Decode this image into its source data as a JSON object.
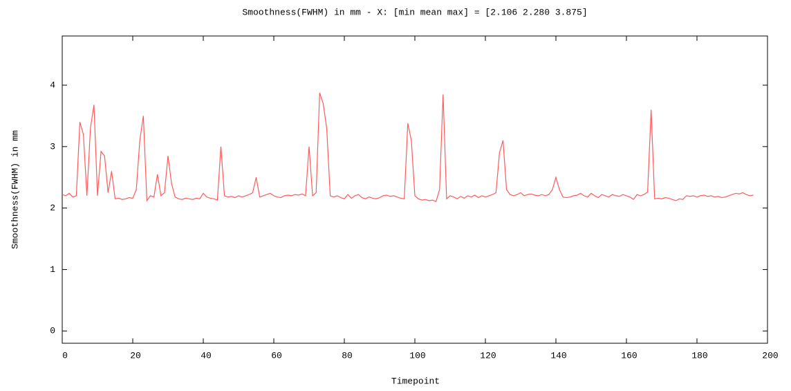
{
  "chart_data": {
    "type": "line",
    "title": "Smoothness(FWHM) in mm - X: [min mean max] = [2.106 2.280 3.875]",
    "xlabel": "Timepoint",
    "ylabel": "Smoothness(FWHM) in mm",
    "color": "#ff5a5a",
    "x": [
      0,
      1,
      2,
      3,
      4,
      5,
      6,
      7,
      8,
      9,
      10,
      11,
      12,
      13,
      14,
      15,
      16,
      17,
      18,
      19,
      20,
      21,
      22,
      23,
      24,
      25,
      26,
      27,
      28,
      29,
      30,
      31,
      32,
      33,
      34,
      35,
      36,
      37,
      38,
      39,
      40,
      41,
      42,
      43,
      44,
      45,
      46,
      47,
      48,
      49,
      50,
      51,
      52,
      53,
      54,
      55,
      56,
      57,
      58,
      59,
      60,
      61,
      62,
      63,
      64,
      65,
      66,
      67,
      68,
      69,
      70,
      71,
      72,
      73,
      74,
      75,
      76,
      77,
      78,
      79,
      80,
      81,
      82,
      83,
      84,
      85,
      86,
      87,
      88,
      89,
      90,
      91,
      92,
      93,
      94,
      95,
      96,
      97,
      98,
      99,
      100,
      101,
      102,
      103,
      104,
      105,
      106,
      107,
      108,
      109,
      110,
      111,
      112,
      113,
      114,
      115,
      116,
      117,
      118,
      119,
      120,
      121,
      122,
      123,
      124,
      125,
      126,
      127,
      128,
      129,
      130,
      131,
      132,
      133,
      134,
      135,
      136,
      137,
      138,
      139,
      140,
      141,
      142,
      143,
      144,
      145,
      146,
      147,
      148,
      149,
      150,
      151,
      152,
      153,
      154,
      155,
      156,
      157,
      158,
      159,
      160,
      161,
      162,
      163,
      164,
      165,
      166,
      167,
      168,
      169,
      170,
      171,
      172,
      173,
      174,
      175,
      176,
      177,
      178,
      179,
      180,
      181,
      182,
      183,
      184,
      185,
      186,
      187,
      188,
      189,
      190,
      191,
      192,
      193,
      194,
      195,
      196
    ],
    "values": [
      2.22,
      2.2,
      2.24,
      2.18,
      2.2,
      3.4,
      3.2,
      2.2,
      3.3,
      3.68,
      2.2,
      2.92,
      2.85,
      2.25,
      2.6,
      2.15,
      2.16,
      2.14,
      2.15,
      2.17,
      2.16,
      2.3,
      3.1,
      3.5,
      2.12,
      2.2,
      2.18,
      2.55,
      2.2,
      2.25,
      2.85,
      2.4,
      2.18,
      2.15,
      2.14,
      2.16,
      2.15,
      2.14,
      2.16,
      2.15,
      2.24,
      2.18,
      2.16,
      2.15,
      2.13,
      3.0,
      2.2,
      2.18,
      2.19,
      2.17,
      2.2,
      2.18,
      2.2,
      2.22,
      2.25,
      2.5,
      2.18,
      2.2,
      2.22,
      2.24,
      2.2,
      2.18,
      2.17,
      2.2,
      2.21,
      2.2,
      2.22,
      2.21,
      2.23,
      2.2,
      3.0,
      2.2,
      2.25,
      3.875,
      3.7,
      3.3,
      2.2,
      2.18,
      2.2,
      2.17,
      2.15,
      2.22,
      2.16,
      2.2,
      2.22,
      2.17,
      2.15,
      2.18,
      2.16,
      2.15,
      2.17,
      2.2,
      2.21,
      2.19,
      2.2,
      2.18,
      2.16,
      2.15,
      3.38,
      3.1,
      2.2,
      2.15,
      2.13,
      2.14,
      2.12,
      2.13,
      2.106,
      2.3,
      3.85,
      2.15,
      2.2,
      2.18,
      2.15,
      2.19,
      2.16,
      2.2,
      2.18,
      2.21,
      2.17,
      2.2,
      2.18,
      2.2,
      2.22,
      2.25,
      2.9,
      3.1,
      2.3,
      2.22,
      2.2,
      2.22,
      2.25,
      2.2,
      2.22,
      2.23,
      2.21,
      2.2,
      2.22,
      2.2,
      2.22,
      2.3,
      2.5,
      2.3,
      2.18,
      2.17,
      2.18,
      2.2,
      2.21,
      2.24,
      2.2,
      2.18,
      2.24,
      2.2,
      2.17,
      2.22,
      2.2,
      2.18,
      2.22,
      2.2,
      2.19,
      2.22,
      2.2,
      2.18,
      2.14,
      2.22,
      2.2,
      2.22,
      2.26,
      3.6,
      2.15,
      2.16,
      2.15,
      2.17,
      2.16,
      2.14,
      2.12,
      2.15,
      2.14,
      2.2,
      2.19,
      2.2,
      2.18,
      2.2,
      2.21,
      2.19,
      2.2,
      2.18,
      2.19,
      2.17,
      2.18,
      2.2,
      2.22,
      2.24,
      2.23,
      2.25,
      2.22,
      2.2,
      2.21
    ],
    "xlim": [
      0,
      200
    ],
    "xticks": [
      0,
      20,
      40,
      60,
      80,
      100,
      120,
      140,
      160,
      180,
      200
    ],
    "ylim": [
      -0.2,
      4.8
    ],
    "yticks": [
      0,
      1,
      2,
      3,
      4
    ]
  }
}
